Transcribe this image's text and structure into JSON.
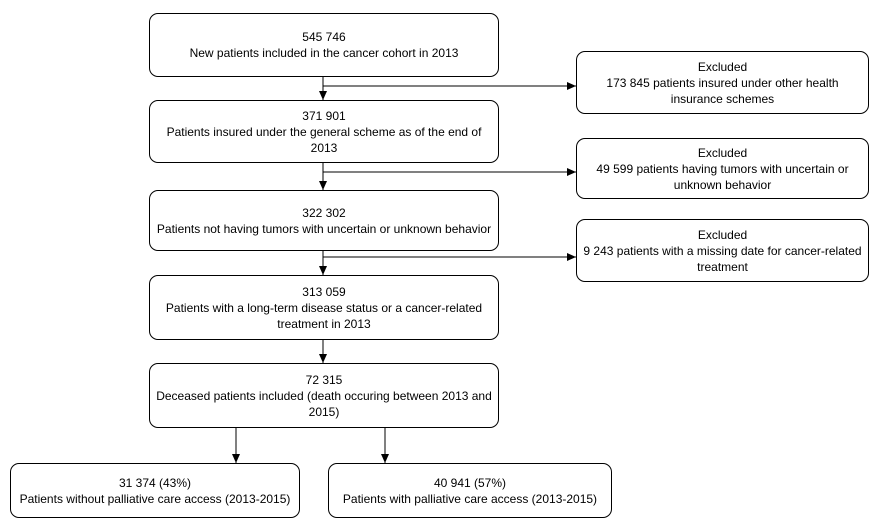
{
  "boxes": {
    "cohort": {
      "count": "545 746",
      "text": "New patients included in the cancer cohort in 2013"
    },
    "general_scheme": {
      "count": "371 901",
      "text": "Patients insured under the  general scheme as of the end of 2013"
    },
    "no_uncertain": {
      "count": "322 302",
      "text": "Patients not having tumors with uncertain or unknown behavior"
    },
    "long_term": {
      "count": "313 059",
      "text": "Patients with a long-term disease status or a cancer-related treatment in 2013"
    },
    "deceased": {
      "count": "72 315",
      "text": "Deceased patients included (death occuring between 2013 and 2015)"
    },
    "without_palliative": {
      "count": "31 374 (43%)",
      "text": "Patients without palliative care access (2013-2015)"
    },
    "with_palliative": {
      "count": "40 941 (57%)",
      "text": "Patients with palliative care access (2013-2015)"
    }
  },
  "exclusions": {
    "other_schemes": {
      "title": "Excluded",
      "text": "173 845 patients insured under other health insurance schemes"
    },
    "uncertain_behavior": {
      "title": "Excluded",
      "text": "49 599 patients having tumors with uncertain or unknown behavior"
    },
    "missing_date": {
      "title": "Excluded",
      "text": "9 243 patients with a missing date for cancer-related treatment"
    }
  }
}
